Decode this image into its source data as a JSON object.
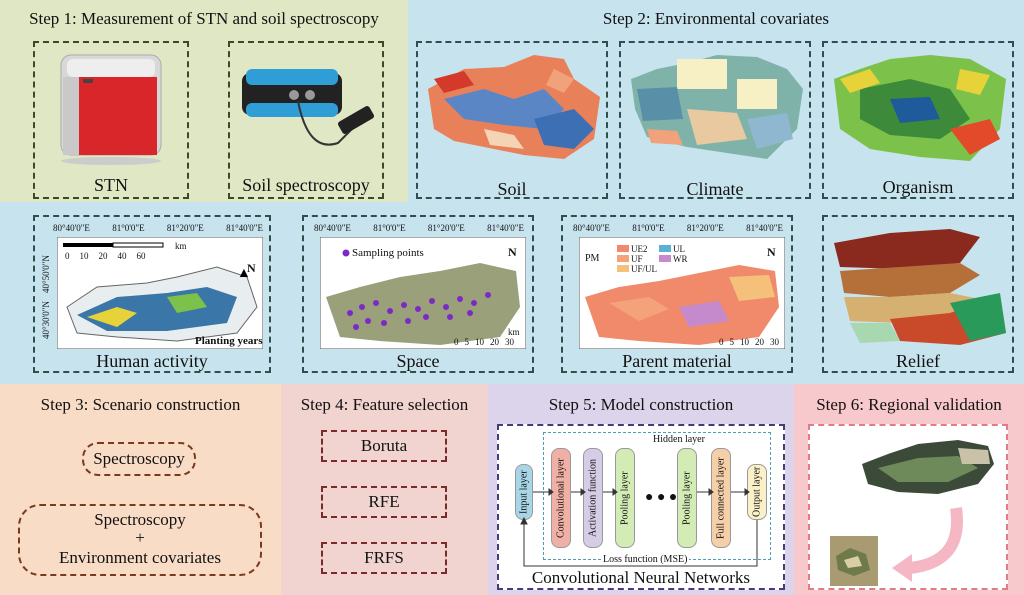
{
  "colors": {
    "step1_bg": "#dfe7c4",
    "step2_bg": "#c7e3ee",
    "step3_bg": "#f9dcc6",
    "step4_bg": "#f1d3cf",
    "step5_bg": "#dcd4ea",
    "step6_bg": "#f7c9cd"
  },
  "step1": {
    "title": "Step 1: Measurement of STN and soil spectroscopy",
    "stn": "STN",
    "spectroscopy": "Soil spectroscopy"
  },
  "step2": {
    "title": "Step 2: Environmental covariates",
    "soil": "Soil",
    "climate": "Climate",
    "organism": "Organism",
    "human": "Human activity",
    "space": "Space",
    "parent": "Parent material",
    "relief": "Relief",
    "lon_ticks": [
      "80°40'0\"E",
      "81°0'0\"E",
      "81°20'0\"E",
      "81°40'0\"E"
    ],
    "lat_ticks": [
      "40°50'0\"N",
      "40°30'0\"N"
    ],
    "planting_years": "Planting years",
    "sampling_points": "Sampling points",
    "scale_km": "km",
    "scale_human": [
      "0",
      "10",
      "20",
      "40",
      "60"
    ],
    "scale_space": [
      "0",
      "5",
      "10",
      "20",
      "30"
    ],
    "pm_label": "PM",
    "pm_legend": [
      "UE2",
      "UF",
      "UF/UL",
      "UL",
      "WR"
    ],
    "north": "N"
  },
  "step3": {
    "title": "Step 3: Scenario construction",
    "s1": "Spectroscopy",
    "s2a": "Spectroscopy",
    "s2plus": "+",
    "s2b": "Environment covariates"
  },
  "step4": {
    "title": "Step 4: Feature selection",
    "f1": "Boruta",
    "f2": "RFE",
    "f3": "FRFS"
  },
  "step5": {
    "title": "Step 5: Model construction",
    "hidden": "Hidden layer",
    "input": "Input layer",
    "conv": "Convolutional layer",
    "act": "Activation function",
    "pool1": "Pooling layer",
    "dots": "● ● ●",
    "pool2": "Pooling layer",
    "fc": "Full connected layer",
    "output": "Output layer",
    "loss": "Loss function (MSE)",
    "caption": "Convolutional Neural Networks"
  },
  "step6": {
    "title": "Step 6: Regional validation"
  }
}
